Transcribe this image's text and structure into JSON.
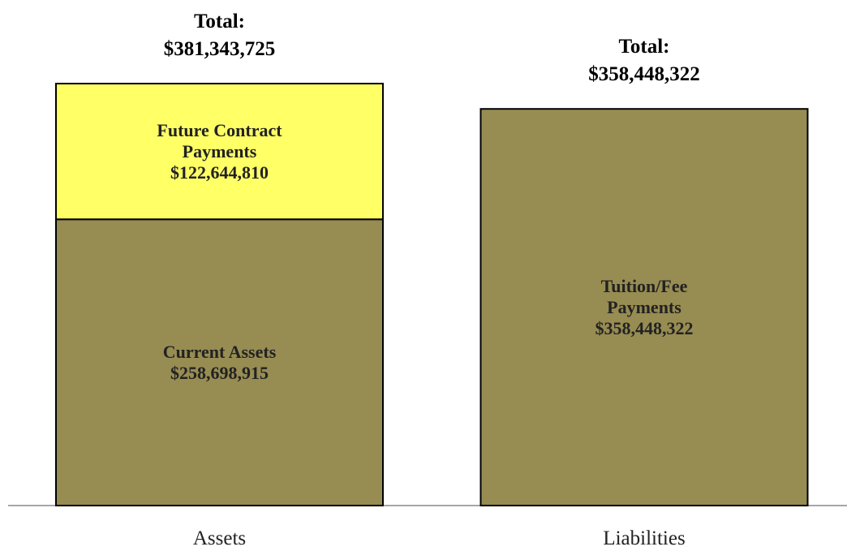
{
  "chart_data": {
    "type": "stacked_bar",
    "categories": [
      "Assets",
      "Liabilities"
    ],
    "series": [
      {
        "name": "Current Assets",
        "color": "#978c52",
        "values": [
          258698915,
          null
        ],
        "value_labels": [
          "$258,698,915",
          null
        ]
      },
      {
        "name": "Future Contract Payments",
        "color": "#ffff66",
        "values": [
          122644810,
          null
        ],
        "value_labels": [
          "$122,644,810",
          null
        ]
      },
      {
        "name": "Tuition/Fee Payments",
        "color": "#978c52",
        "values": [
          null,
          358448322
        ],
        "value_labels": [
          null,
          "$358,448,322"
        ]
      }
    ],
    "total_title": "Total:",
    "totals": [
      381343725,
      358448322
    ],
    "total_labels": [
      "$381,343,725",
      "$358,448,322"
    ]
  }
}
